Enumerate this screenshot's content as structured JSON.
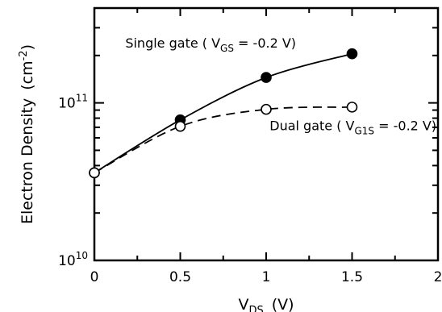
{
  "chart_data": {
    "type": "line",
    "xlabel": "V",
    "xlabel_sub": "DS",
    "xlabel_unit": "(V)",
    "ylabel": "Electron Density",
    "ylabel_unit": "(cm",
    "ylabel_sup": "-2",
    "ylabel_close": ")",
    "xlim": [
      0,
      2
    ],
    "ylim": [
      10000000000,
      400000000000
    ],
    "yscale": "log",
    "grid": false,
    "x_ticks": [
      {
        "value": 0,
        "label": "0"
      },
      {
        "value": 0.5,
        "label": "0.5"
      },
      {
        "value": 1,
        "label": "1"
      },
      {
        "value": 1.5,
        "label": "1.5"
      },
      {
        "value": 2,
        "label": "2"
      }
    ],
    "y_major_ticks": [
      {
        "value": 10000000000,
        "base": "10",
        "exp": "10"
      },
      {
        "value": 100000000000,
        "base": "10",
        "exp": "11"
      }
    ],
    "series": [
      {
        "x": [
          0,
          0.5,
          1,
          1.5
        ],
        "y": [
          36000000000,
          78000000000,
          145000000000,
          205000000000
        ],
        "marker": "filled-circle",
        "line_style": "solid"
      },
      {
        "x": [
          0,
          0.5,
          1,
          1.5
        ],
        "y": [
          36000000000,
          71000000000,
          91000000000,
          94000000000
        ],
        "marker": "open-circle",
        "line_style": "dashed"
      }
    ],
    "annotations": [
      {
        "text_before": "Single gate  ( V",
        "sub": "GS",
        "text_after": " = -0.2 V)",
        "x": 0.18,
        "y": 225000000000
      },
      {
        "text_before": "Dual gate  ( V",
        "sub": "G1S",
        "text_after": " = -0.2 V)",
        "x": 1.02,
        "y": 67000000000
      }
    ]
  }
}
